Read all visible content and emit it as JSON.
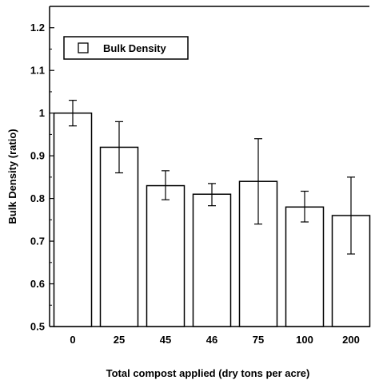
{
  "chart_data": {
    "type": "bar",
    "categories": [
      "0",
      "25",
      "45",
      "46",
      "75",
      "100",
      "200"
    ],
    "series": [
      {
        "name": "Bulk Density",
        "values": [
          1.0,
          0.92,
          0.83,
          0.81,
          0.84,
          0.78,
          0.76
        ],
        "error_low": [
          0.97,
          0.86,
          0.797,
          0.783,
          0.74,
          0.745,
          0.67
        ],
        "error_high": [
          1.03,
          0.98,
          0.865,
          0.835,
          0.94,
          0.817,
          0.85
        ]
      }
    ],
    "title": "",
    "xlabel": "Total  compost applied (dry tons per acre)",
    "ylabel": "Bulk Density (ratio)",
    "ylim": [
      0.5,
      1.25
    ],
    "yticks": [
      "0.5",
      "0.6",
      "0.7",
      "0.8",
      "0.9",
      "1",
      "1.1",
      "1.2"
    ],
    "ytick_values": [
      0.5,
      0.6,
      0.7,
      0.8,
      0.9,
      1.0,
      1.1,
      1.2
    ],
    "legend": {
      "label": "Bulk Density",
      "position": "top-left"
    },
    "grid": false,
    "colors": {
      "bar_fill": "#ffffff",
      "stroke": "#000000"
    }
  }
}
